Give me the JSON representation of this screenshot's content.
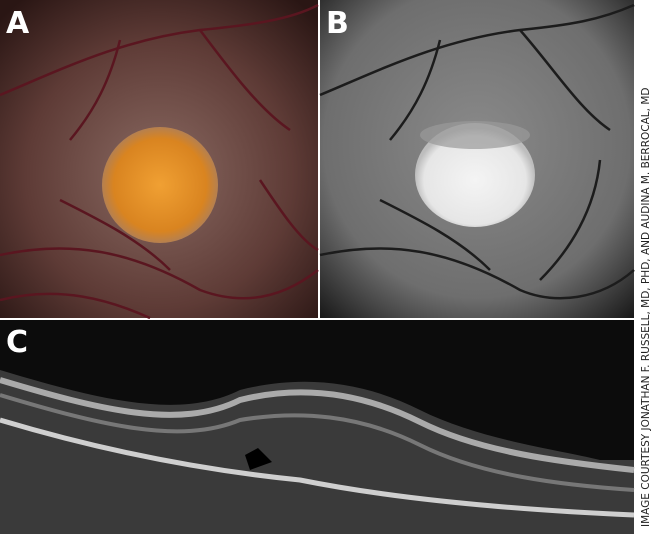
{
  "panels": [
    {
      "label": "A"
    },
    {
      "label": "B"
    },
    {
      "label": "C"
    }
  ],
  "credit": "IMAGE COURTESY JONATHAN F. RUSSELL, MD, PHD, AND AUDINA M. BERROCAL, MD"
}
